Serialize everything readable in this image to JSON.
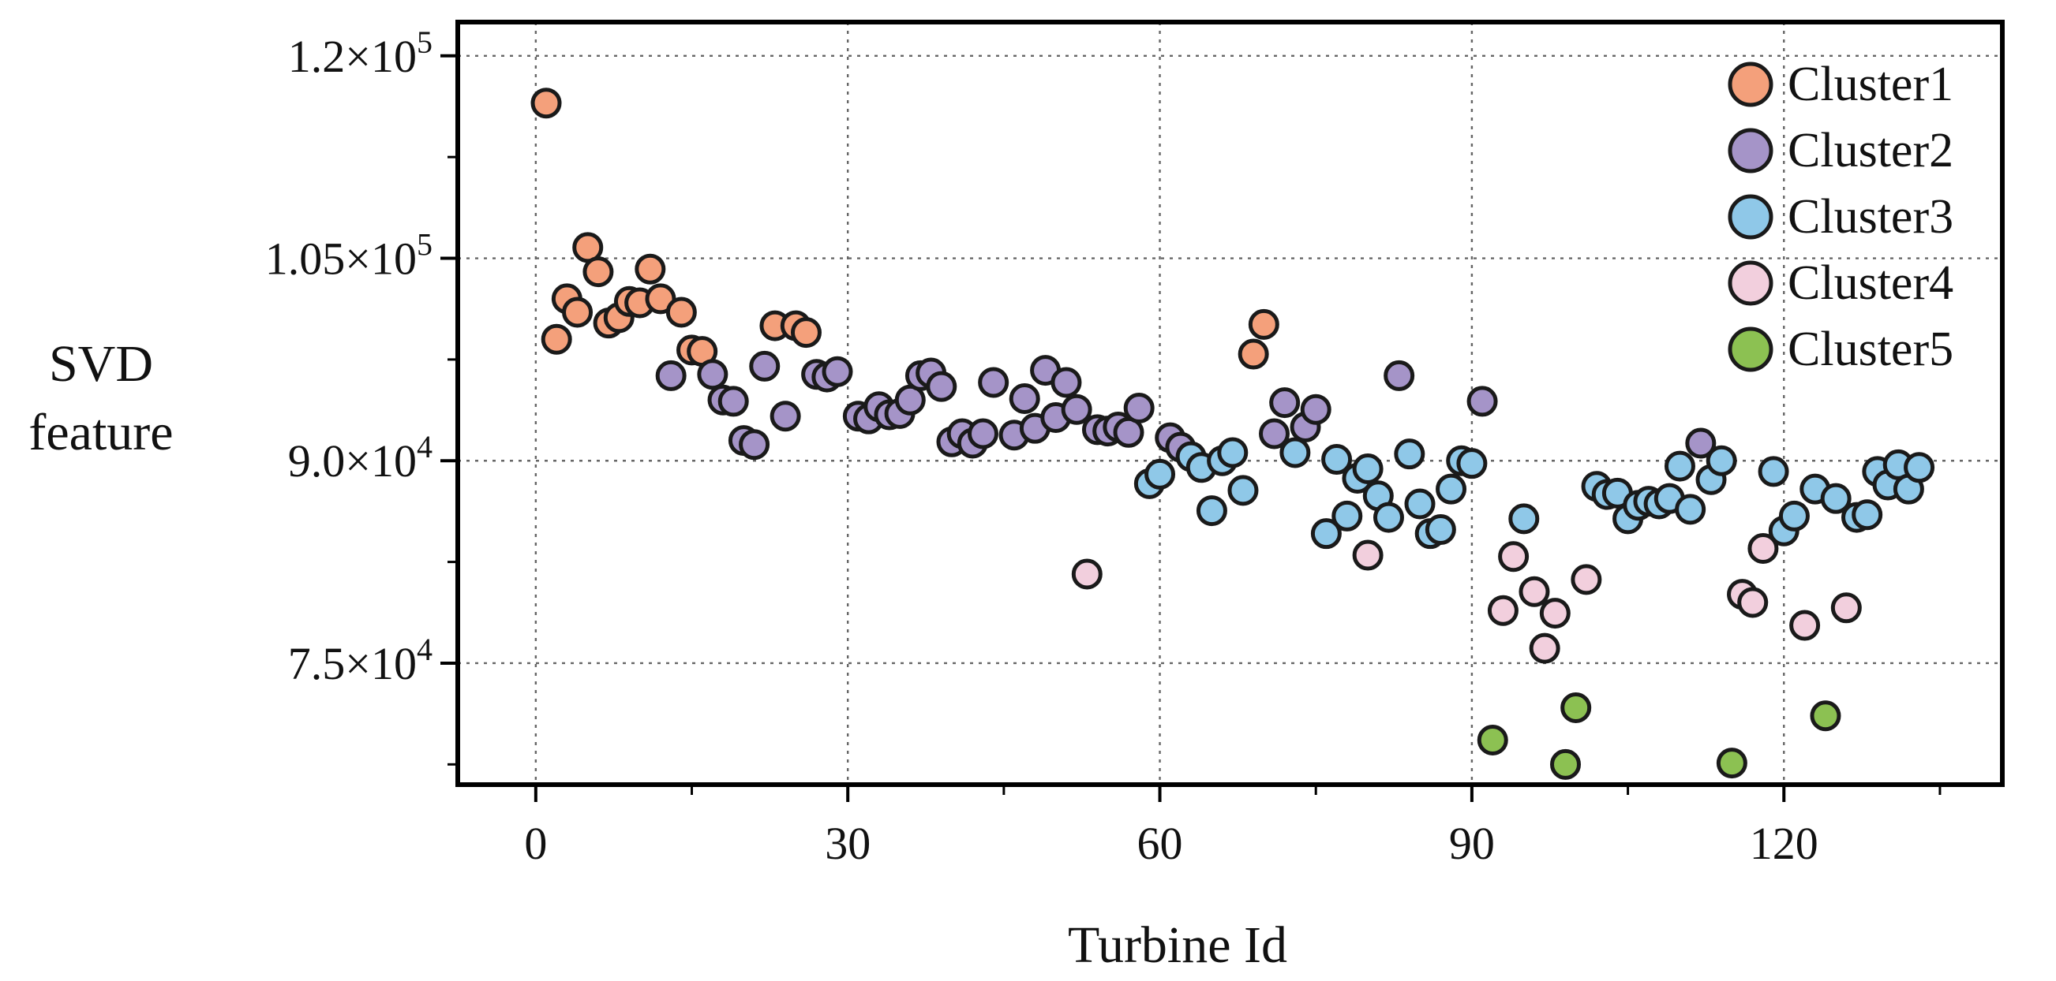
{
  "chart_data": {
    "type": "scatter",
    "xlabel": "Turbine Id",
    "ylabel": [
      "SVD",
      "feature"
    ],
    "xlim": [
      -7.5,
      141
    ],
    "ylim": [
      66000,
      122500
    ],
    "xticks": [
      0,
      30,
      60,
      90,
      120
    ],
    "xtick_labels": [
      "0",
      "30",
      "60",
      "90",
      "120"
    ],
    "yticks": [
      75000,
      90000,
      105000,
      120000
    ],
    "ytick_labels": [
      {
        "base": "7.5×10",
        "exp": "4"
      },
      {
        "base": "9.0×10",
        "exp": "4"
      },
      {
        "base": "1.05×10",
        "exp": "5"
      },
      {
        "base": "1.2×10",
        "exp": "5"
      }
    ],
    "x_minor_ticks": [
      15,
      45,
      75,
      105,
      135
    ],
    "y_minor_ticks": [
      67500,
      82500,
      97500,
      112500
    ],
    "grid": true,
    "legend_position": "top-right",
    "series": [
      {
        "name": "Cluster1",
        "color": "#F4A07B",
        "points": [
          [
            1,
            116500
          ],
          [
            2,
            99000
          ],
          [
            3,
            102000
          ],
          [
            4,
            101000
          ],
          [
            5,
            105800
          ],
          [
            6,
            104000
          ],
          [
            7,
            100200
          ],
          [
            8,
            100600
          ],
          [
            9,
            101800
          ],
          [
            10,
            101700
          ],
          [
            11,
            104200
          ],
          [
            12,
            102000
          ],
          [
            14,
            101000
          ],
          [
            15,
            98200
          ],
          [
            16,
            98100
          ],
          [
            23,
            100000
          ],
          [
            25,
            100000
          ],
          [
            26,
            99500
          ],
          [
            69,
            97900
          ],
          [
            70,
            100100
          ]
        ]
      },
      {
        "name": "Cluster2",
        "color": "#A594C8",
        "points": [
          [
            13,
            96300
          ],
          [
            17,
            96400
          ],
          [
            18,
            94500
          ],
          [
            19,
            94400
          ],
          [
            20,
            91500
          ],
          [
            21,
            91200
          ],
          [
            22,
            97000
          ],
          [
            24,
            93300
          ],
          [
            27,
            96400
          ],
          [
            28,
            96200
          ],
          [
            29,
            96600
          ],
          [
            31,
            93300
          ],
          [
            32,
            93100
          ],
          [
            33,
            94000
          ],
          [
            34,
            93400
          ],
          [
            35,
            93500
          ],
          [
            36,
            94500
          ],
          [
            37,
            96300
          ],
          [
            38,
            96500
          ],
          [
            39,
            95500
          ],
          [
            40,
            91400
          ],
          [
            41,
            92000
          ],
          [
            42,
            91300
          ],
          [
            43,
            92000
          ],
          [
            44,
            95800
          ],
          [
            46,
            91900
          ],
          [
            47,
            94600
          ],
          [
            48,
            92400
          ],
          [
            49,
            96700
          ],
          [
            50,
            93200
          ],
          [
            51,
            95800
          ],
          [
            52,
            93800
          ],
          [
            54,
            92300
          ],
          [
            55,
            92200
          ],
          [
            56,
            92500
          ],
          [
            57,
            92100
          ],
          [
            58,
            93900
          ],
          [
            61,
            91700
          ],
          [
            62,
            91000
          ],
          [
            71,
            92000
          ],
          [
            72,
            94300
          ],
          [
            74,
            92500
          ],
          [
            75,
            93800
          ],
          [
            83,
            96300
          ],
          [
            91,
            94400
          ],
          [
            112,
            91300
          ]
        ]
      },
      {
        "name": "Cluster3",
        "color": "#8FC8E8",
        "points": [
          [
            59,
            88300
          ],
          [
            60,
            89000
          ],
          [
            63,
            90300
          ],
          [
            64,
            89500
          ],
          [
            65,
            86300
          ],
          [
            66,
            90000
          ],
          [
            67,
            90600
          ],
          [
            68,
            87800
          ],
          [
            73,
            90600
          ],
          [
            76,
            84600
          ],
          [
            77,
            90100
          ],
          [
            78,
            85900
          ],
          [
            79,
            88700
          ],
          [
            80,
            89400
          ],
          [
            81,
            87400
          ],
          [
            82,
            85800
          ],
          [
            84,
            90500
          ],
          [
            85,
            86800
          ],
          [
            86,
            84600
          ],
          [
            87,
            84900
          ],
          [
            88,
            87900
          ],
          [
            89,
            90000
          ],
          [
            90,
            89800
          ],
          [
            95,
            85700
          ],
          [
            102,
            88100
          ],
          [
            103,
            87500
          ],
          [
            104,
            87600
          ],
          [
            105,
            85700
          ],
          [
            106,
            86700
          ],
          [
            107,
            87000
          ],
          [
            108,
            86800
          ],
          [
            109,
            87200
          ],
          [
            110,
            89600
          ],
          [
            111,
            86400
          ],
          [
            113,
            88600
          ],
          [
            114,
            90000
          ],
          [
            119,
            89200
          ],
          [
            120,
            84800
          ],
          [
            121,
            85900
          ],
          [
            123,
            87900
          ],
          [
            125,
            87200
          ],
          [
            127,
            85800
          ],
          [
            128,
            86000
          ],
          [
            129,
            89200
          ],
          [
            130,
            88200
          ],
          [
            131,
            89700
          ],
          [
            132,
            87900
          ],
          [
            133,
            89500
          ]
        ]
      },
      {
        "name": "Cluster4",
        "color": "#F2CFDD",
        "points": [
          [
            53,
            81600
          ],
          [
            80,
            83000
          ],
          [
            93,
            78900
          ],
          [
            94,
            82900
          ],
          [
            96,
            80300
          ],
          [
            97,
            76100
          ],
          [
            98,
            78700
          ],
          [
            101,
            81200
          ],
          [
            116,
            80100
          ],
          [
            117,
            79500
          ],
          [
            118,
            83500
          ],
          [
            122,
            77800
          ],
          [
            126,
            79100
          ]
        ]
      },
      {
        "name": "Cluster5",
        "color": "#8CC152",
        "points": [
          [
            92,
            69300
          ],
          [
            99,
            67500
          ],
          [
            100,
            71700
          ],
          [
            115,
            67600
          ],
          [
            124,
            71100
          ]
        ]
      }
    ]
  }
}
